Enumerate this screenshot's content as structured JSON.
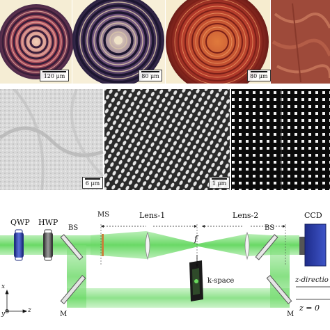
{
  "figure": {
    "top_row_scale_bars": [
      "120 μm",
      "80 μm",
      "80 μm"
    ],
    "middle_row_scale_bars": [
      "6 μm",
      "1 μm"
    ],
    "setup": {
      "components": {
        "qwp": "QWP",
        "hwp": "HWP",
        "bs_left": "BS",
        "ms": "MS",
        "lens1": "Lens-1",
        "lens2": "Lens-2",
        "bs_right": "BS",
        "ccd": "CCD",
        "m_left": "M",
        "m_right": "M"
      },
      "focal_label": "f",
      "kspace_label": "k-space",
      "z_direction_label": "z-directio",
      "z_zero_label": "z = 0",
      "axes": {
        "x": "x",
        "y": "y",
        "z": "z"
      }
    }
  }
}
